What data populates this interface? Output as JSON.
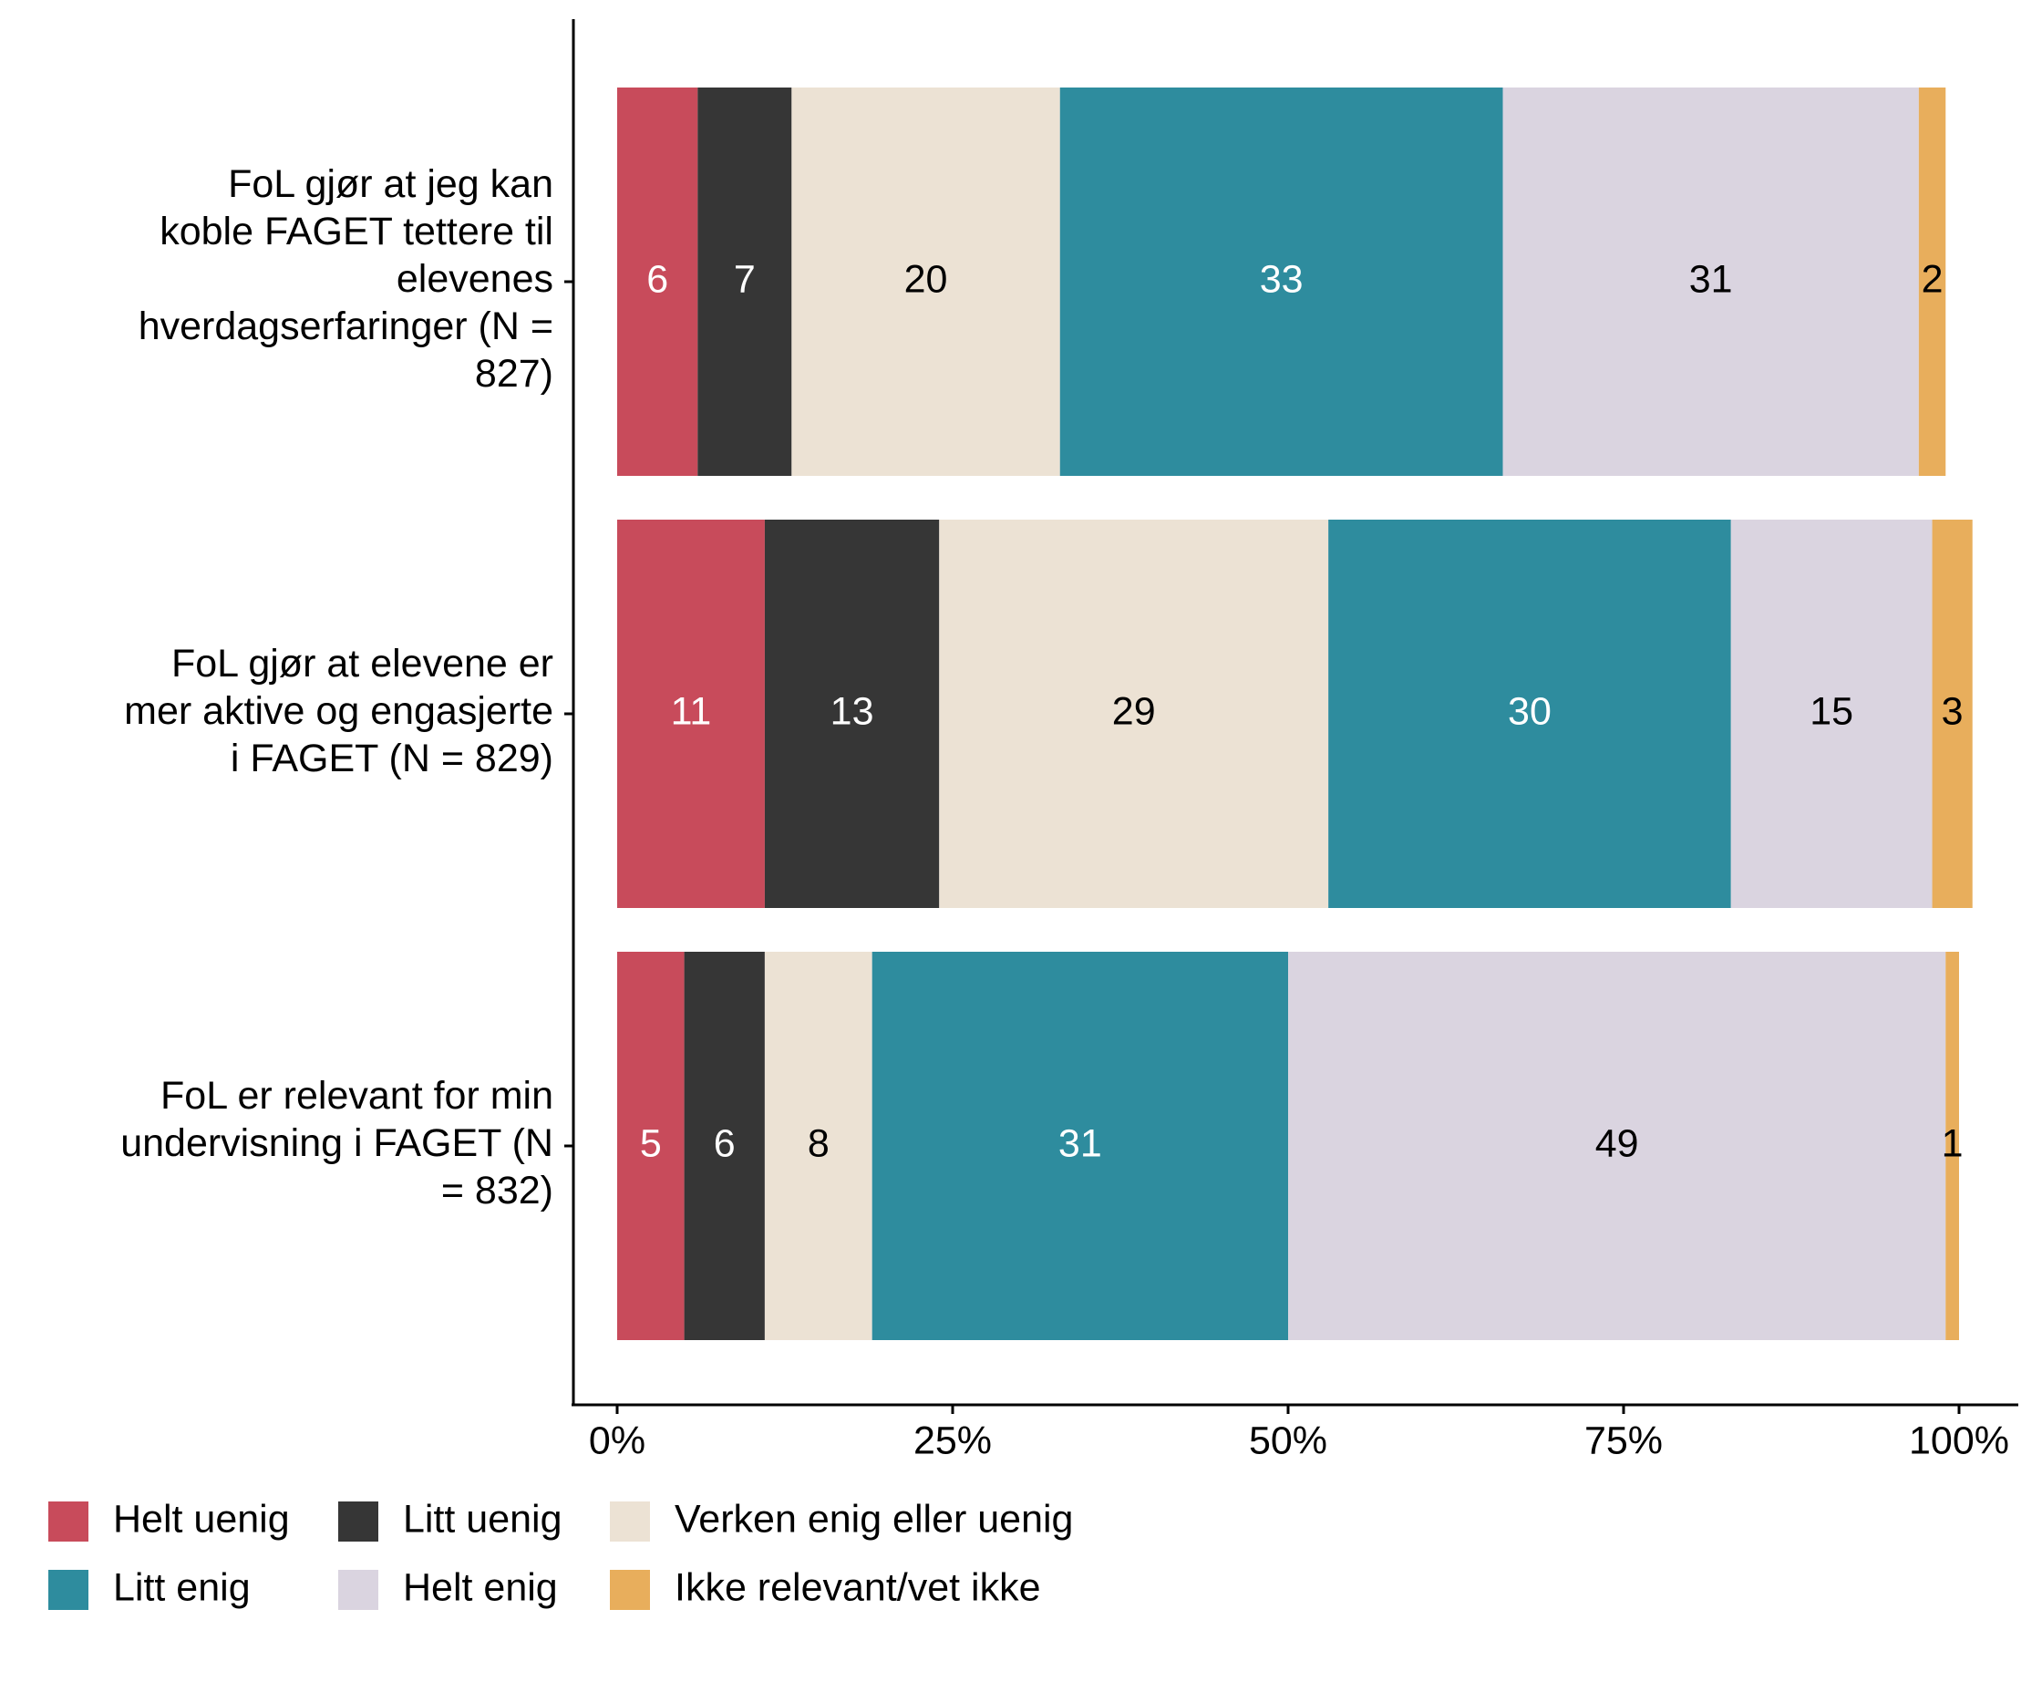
{
  "chart_data": {
    "type": "stacked_bar_horizontal",
    "categories": [
      "FoL gjør at jeg kan koble FAGET tettere til elevenes hverdagserfaringer (N = 827)",
      "FoL gjør at elevene er mer aktive og engasjerte i FAGET (N = 829)",
      "FoL er relevant for min undervisning i FAGET (N = 832)"
    ],
    "series": [
      {
        "name": "Helt uenig",
        "color": "#c84b5b",
        "values": [
          6,
          11,
          5
        ]
      },
      {
        "name": "Litt uenig",
        "color": "#363636",
        "values": [
          7,
          13,
          6
        ]
      },
      {
        "name": "Verken enig eller uenig",
        "color": "#ece2d4",
        "values": [
          20,
          29,
          8
        ]
      },
      {
        "name": "Litt enig",
        "color": "#2e8c9e",
        "values": [
          33,
          30,
          31
        ]
      },
      {
        "name": "Helt enig",
        "color": "#dad4e0",
        "values": [
          31,
          15,
          49
        ]
      },
      {
        "name": "Ikke relevant/vet ikke",
        "color": "#e8ae5c",
        "values": [
          2,
          3,
          1
        ]
      }
    ],
    "xlim": [
      0,
      100
    ],
    "xticks": [
      {
        "value": 0,
        "label": "0%"
      },
      {
        "value": 25,
        "label": "25%"
      },
      {
        "value": 50,
        "label": "50%"
      },
      {
        "value": 75,
        "label": "75%"
      },
      {
        "value": 100,
        "label": "100%"
      }
    ],
    "legend": "bottom"
  }
}
